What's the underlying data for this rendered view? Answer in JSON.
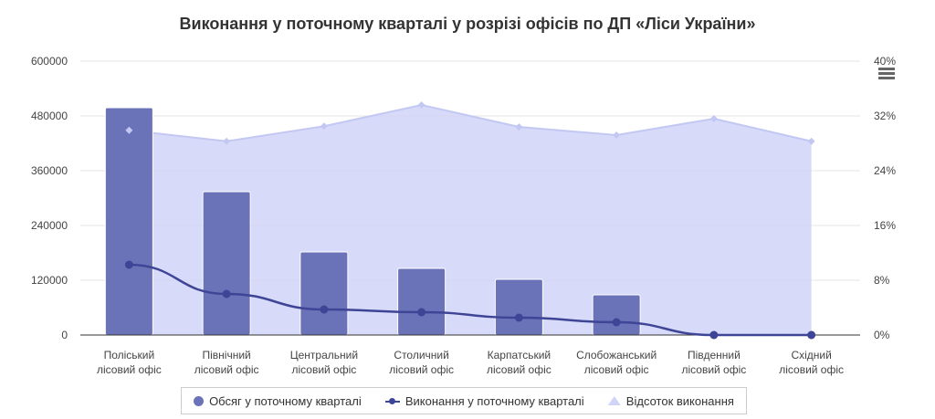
{
  "chart_data": {
    "type": "bar",
    "title": "Виконання у поточному кварталі у розрізі офісів по ДП «Ліси України»",
    "categories": [
      [
        "Поліський",
        "лісовий офіс"
      ],
      [
        "Північний",
        "лісовий офіс"
      ],
      [
        "Центральний",
        "лісовий офіс"
      ],
      [
        "Столичний",
        "лісовий офіс"
      ],
      [
        "Карпатський",
        "лісовий офіс"
      ],
      [
        "Слобожанський",
        "лісовий офіс"
      ],
      [
        "Південний",
        "лісовий офіс"
      ],
      [
        "Східний",
        "лісовий офіс"
      ]
    ],
    "left_axis": {
      "min": 0,
      "max": 600000,
      "ticks": [
        "0",
        "120000",
        "240000",
        "360000",
        "480000",
        "600000"
      ]
    },
    "right_axis": {
      "min": 0,
      "max": 40,
      "ticks": [
        "0%",
        "8%",
        "16%",
        "24%",
        "32%",
        "40%"
      ]
    },
    "grid": true,
    "legend_position": "bottom",
    "series": [
      {
        "name": "Обсяг у поточному кварталі",
        "type": "bar",
        "axis": "left",
        "color": "#6a72b8",
        "values": [
          498000,
          314000,
          182000,
          146000,
          122000,
          88000,
          0,
          0
        ]
      },
      {
        "name": "Виконання у поточному кварталі",
        "type": "line",
        "axis": "left",
        "color": "#3f4596",
        "values": [
          154000,
          90000,
          56000,
          50000,
          38000,
          28000,
          0,
          0
        ]
      },
      {
        "name": "Відсоток виконання",
        "type": "area",
        "axis": "right",
        "color": "#d0d4f7",
        "values": [
          29.9,
          28.3,
          30.5,
          33.6,
          30.4,
          29.2,
          31.6,
          28.3
        ]
      }
    ]
  }
}
